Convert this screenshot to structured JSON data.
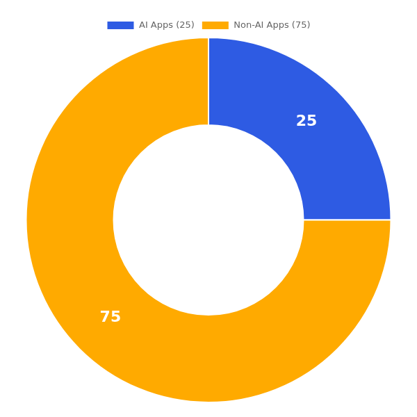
{
  "chart_data": {
    "type": "doughnut",
    "categories": [
      "AI Apps (25)",
      "Non-AI Apps (75)"
    ],
    "values": [
      25,
      75
    ],
    "colors": [
      "#2e5be3",
      "#ffaa00"
    ],
    "data_labels": true,
    "legend": "top"
  }
}
